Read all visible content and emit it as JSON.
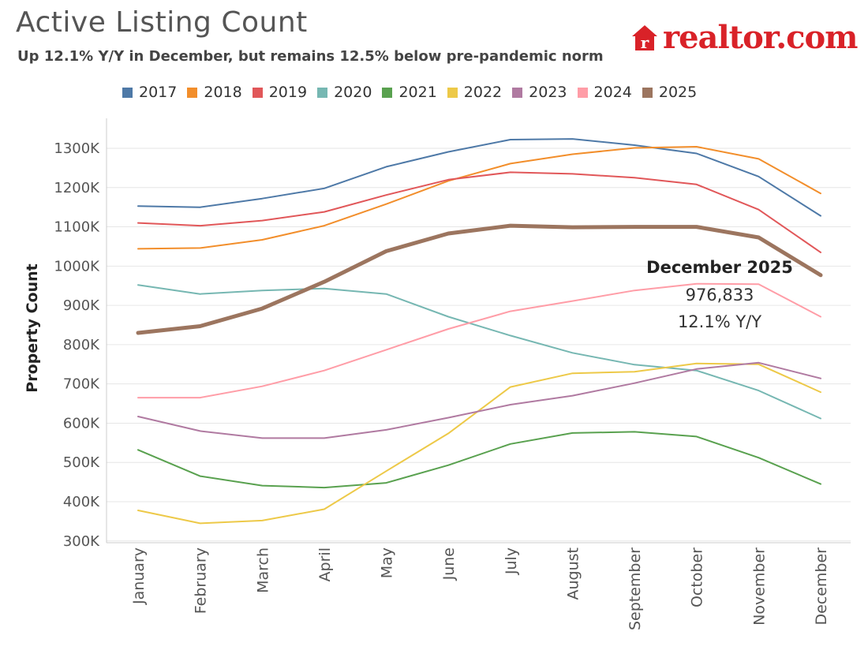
{
  "header": {
    "title": "Active Listing Count",
    "subtitle": "Up 12.1% Y/Y in December, but remains 12.5% below pre-pandemic norm",
    "logo_text": "realtor.com",
    "logo_mark_letter": "r"
  },
  "colors": {
    "brand": "#d92228",
    "grid": "#e6e6e6",
    "axis": "#cccccc"
  },
  "chart_data": {
    "type": "line",
    "ylabel": "Property Count",
    "ylim": [
      275000,
      1380000
    ],
    "yticks": [
      300000,
      400000,
      500000,
      600000,
      700000,
      800000,
      900000,
      1000000,
      1100000,
      1200000,
      1300000
    ],
    "ytick_labels": [
      "300K",
      "400K",
      "500K",
      "600K",
      "700K",
      "800K",
      "900K",
      "1000K",
      "1100K",
      "1200K",
      "1300K"
    ],
    "categories": [
      "January",
      "February",
      "March",
      "April",
      "May",
      "June",
      "July",
      "August",
      "September",
      "October",
      "November",
      "December"
    ],
    "legend_position": "top",
    "series": [
      {
        "name": "2017",
        "color": "#4e79a7",
        "values": [
          1153000,
          1150000,
          1172000,
          1198000,
          1253000,
          1291000,
          1322000,
          1324000,
          1308000,
          1287000,
          1228000,
          1128000
        ]
      },
      {
        "name": "2018",
        "color": "#f28e2b",
        "values": [
          1044000,
          1046000,
          1067000,
          1103000,
          1158000,
          1217000,
          1261000,
          1285000,
          1301000,
          1304000,
          1273000,
          1185000
        ]
      },
      {
        "name": "2019",
        "color": "#e15759",
        "values": [
          1110000,
          1103000,
          1116000,
          1138000,
          1181000,
          1220000,
          1239000,
          1235000,
          1225000,
          1208000,
          1144000,
          1035000
        ]
      },
      {
        "name": "2020",
        "color": "#76b7b2",
        "values": [
          952000,
          929000,
          938000,
          943000,
          929000,
          871000,
          823000,
          779000,
          749000,
          734000,
          683000,
          612000
        ]
      },
      {
        "name": "2021",
        "color": "#59a14f",
        "values": [
          532000,
          465000,
          441000,
          436000,
          448000,
          493000,
          547000,
          575000,
          578000,
          566000,
          512000,
          445000
        ]
      },
      {
        "name": "2022",
        "color": "#edc948",
        "values": [
          378000,
          345000,
          352000,
          381000,
          478000,
          574000,
          692000,
          727000,
          731000,
          752000,
          750000,
          679000
        ]
      },
      {
        "name": "2023",
        "color": "#b07aa1",
        "values": [
          617000,
          580000,
          562000,
          562000,
          583000,
          614000,
          647000,
          670000,
          702000,
          738000,
          754000,
          714000
        ]
      },
      {
        "name": "2024",
        "color": "#ff9da7",
        "values": [
          665000,
          665000,
          694000,
          734000,
          787000,
          840000,
          885000,
          911000,
          938000,
          955000,
          954000,
          871000
        ]
      },
      {
        "name": "2025",
        "color": "#9c755f",
        "values": [
          830000,
          847000,
          892000,
          960000,
          1038000,
          1083000,
          1103000,
          1099000,
          1100000,
          1100000,
          1073000,
          977000
        ],
        "highlight": true
      }
    ],
    "annotation": {
      "title": "December 2025",
      "value": "976,833",
      "change": "12.1% Y/Y"
    }
  }
}
